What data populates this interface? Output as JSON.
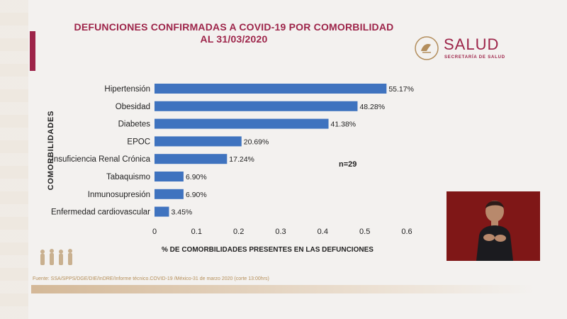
{
  "slide": {
    "title_line1": "DEFUNCIONES CONFIRMADAS A COVID-19 POR COMORBILIDAD",
    "title_line2": "AL 31/03/2020",
    "n_label": "n=29",
    "source": "Fuente: SSA/SPPS/DGE/DIE/InDRE/Informe técnico.COVID-19 /México-31 de marzo 2020 (corte 13:00hrs)"
  },
  "logo": {
    "name": "SALUD",
    "subtitle": "SECRETARÍA DE SALUD",
    "icon": "coat-of-arms-icon"
  },
  "colors": {
    "accent": "#9d2449",
    "bar": "#3f73bf",
    "text": "#222222",
    "source": "#b58f5a",
    "interpreter_bg": "#7f1717"
  },
  "chart_data": {
    "type": "bar",
    "orientation": "horizontal",
    "categories": [
      "Hipertensión",
      "Obesidad",
      "Diabetes",
      "EPOC",
      "Insuficiencia Renal Crónica",
      "Tabaquismo",
      "Inmunosupresión",
      "Enfermedad cardiovascular"
    ],
    "values": [
      0.5517,
      0.4828,
      0.4138,
      0.2069,
      0.1724,
      0.069,
      0.069,
      0.0345
    ],
    "data_labels": [
      "55.17%",
      "48.28%",
      "41.38%",
      "20.69%",
      "17.24%",
      "6.90%",
      "6.90%",
      "3.45%"
    ],
    "x_ticks": [
      "0",
      "0.1",
      "0.2",
      "0.3",
      "0.4",
      "0.5",
      "0.6"
    ],
    "xlim": [
      0,
      0.6
    ],
    "xlabel": "% DE COMORBILIDADES PRESENTES EN LAS DEFUNCIONES",
    "ylabel": "COMORBILIDADES",
    "grid": false
  }
}
